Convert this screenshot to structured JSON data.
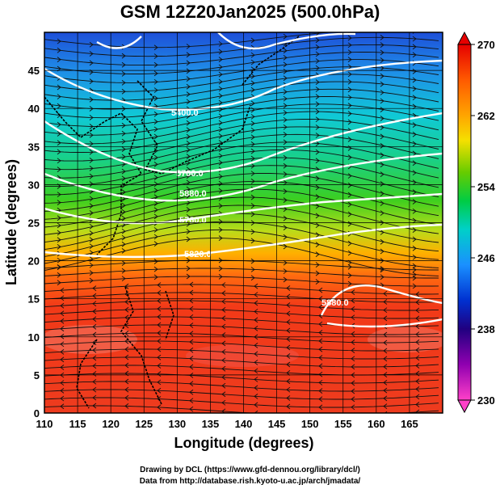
{
  "title": "GSM 12Z20Jan2025 (500.0hPa)",
  "credits": {
    "line1": "Drawing by DCL (https://www.gfd-dennou.org/library/dcl/)",
    "line2": "Data from http://database.rish.kyoto-u.ac.jp/arch/jmadata/"
  },
  "map": {
    "xlabel": "Longitude (degrees)",
    "ylabel": "Latitude  (degrees)",
    "lon_range": [
      110,
      170
    ],
    "lat_range": [
      0,
      50
    ],
    "x_ticks": [
      "110",
      "115",
      "120",
      "125",
      "130",
      "135",
      "140",
      "145",
      "150",
      "155",
      "160",
      "165"
    ],
    "y_ticks": [
      "0",
      "5",
      "10",
      "15",
      "20",
      "25",
      "30",
      "35",
      "40",
      "45"
    ],
    "contour_labels": [
      "5400.0",
      "5700.0",
      "5880.0",
      "5760.0",
      "5820.0",
      "5880.0"
    ]
  },
  "colorbar": {
    "ticks": [
      "270",
      "262",
      "254",
      "246",
      "238",
      "230"
    ],
    "colors": [
      "#d00000",
      "#ee3a00",
      "#ff8a00",
      "#ffcc00",
      "#66cc00",
      "#00cc33",
      "#00cccc",
      "#1a8cff",
      "#0033cc",
      "#2a00a0",
      "#9a00b0",
      "#ff44cc"
    ]
  }
}
